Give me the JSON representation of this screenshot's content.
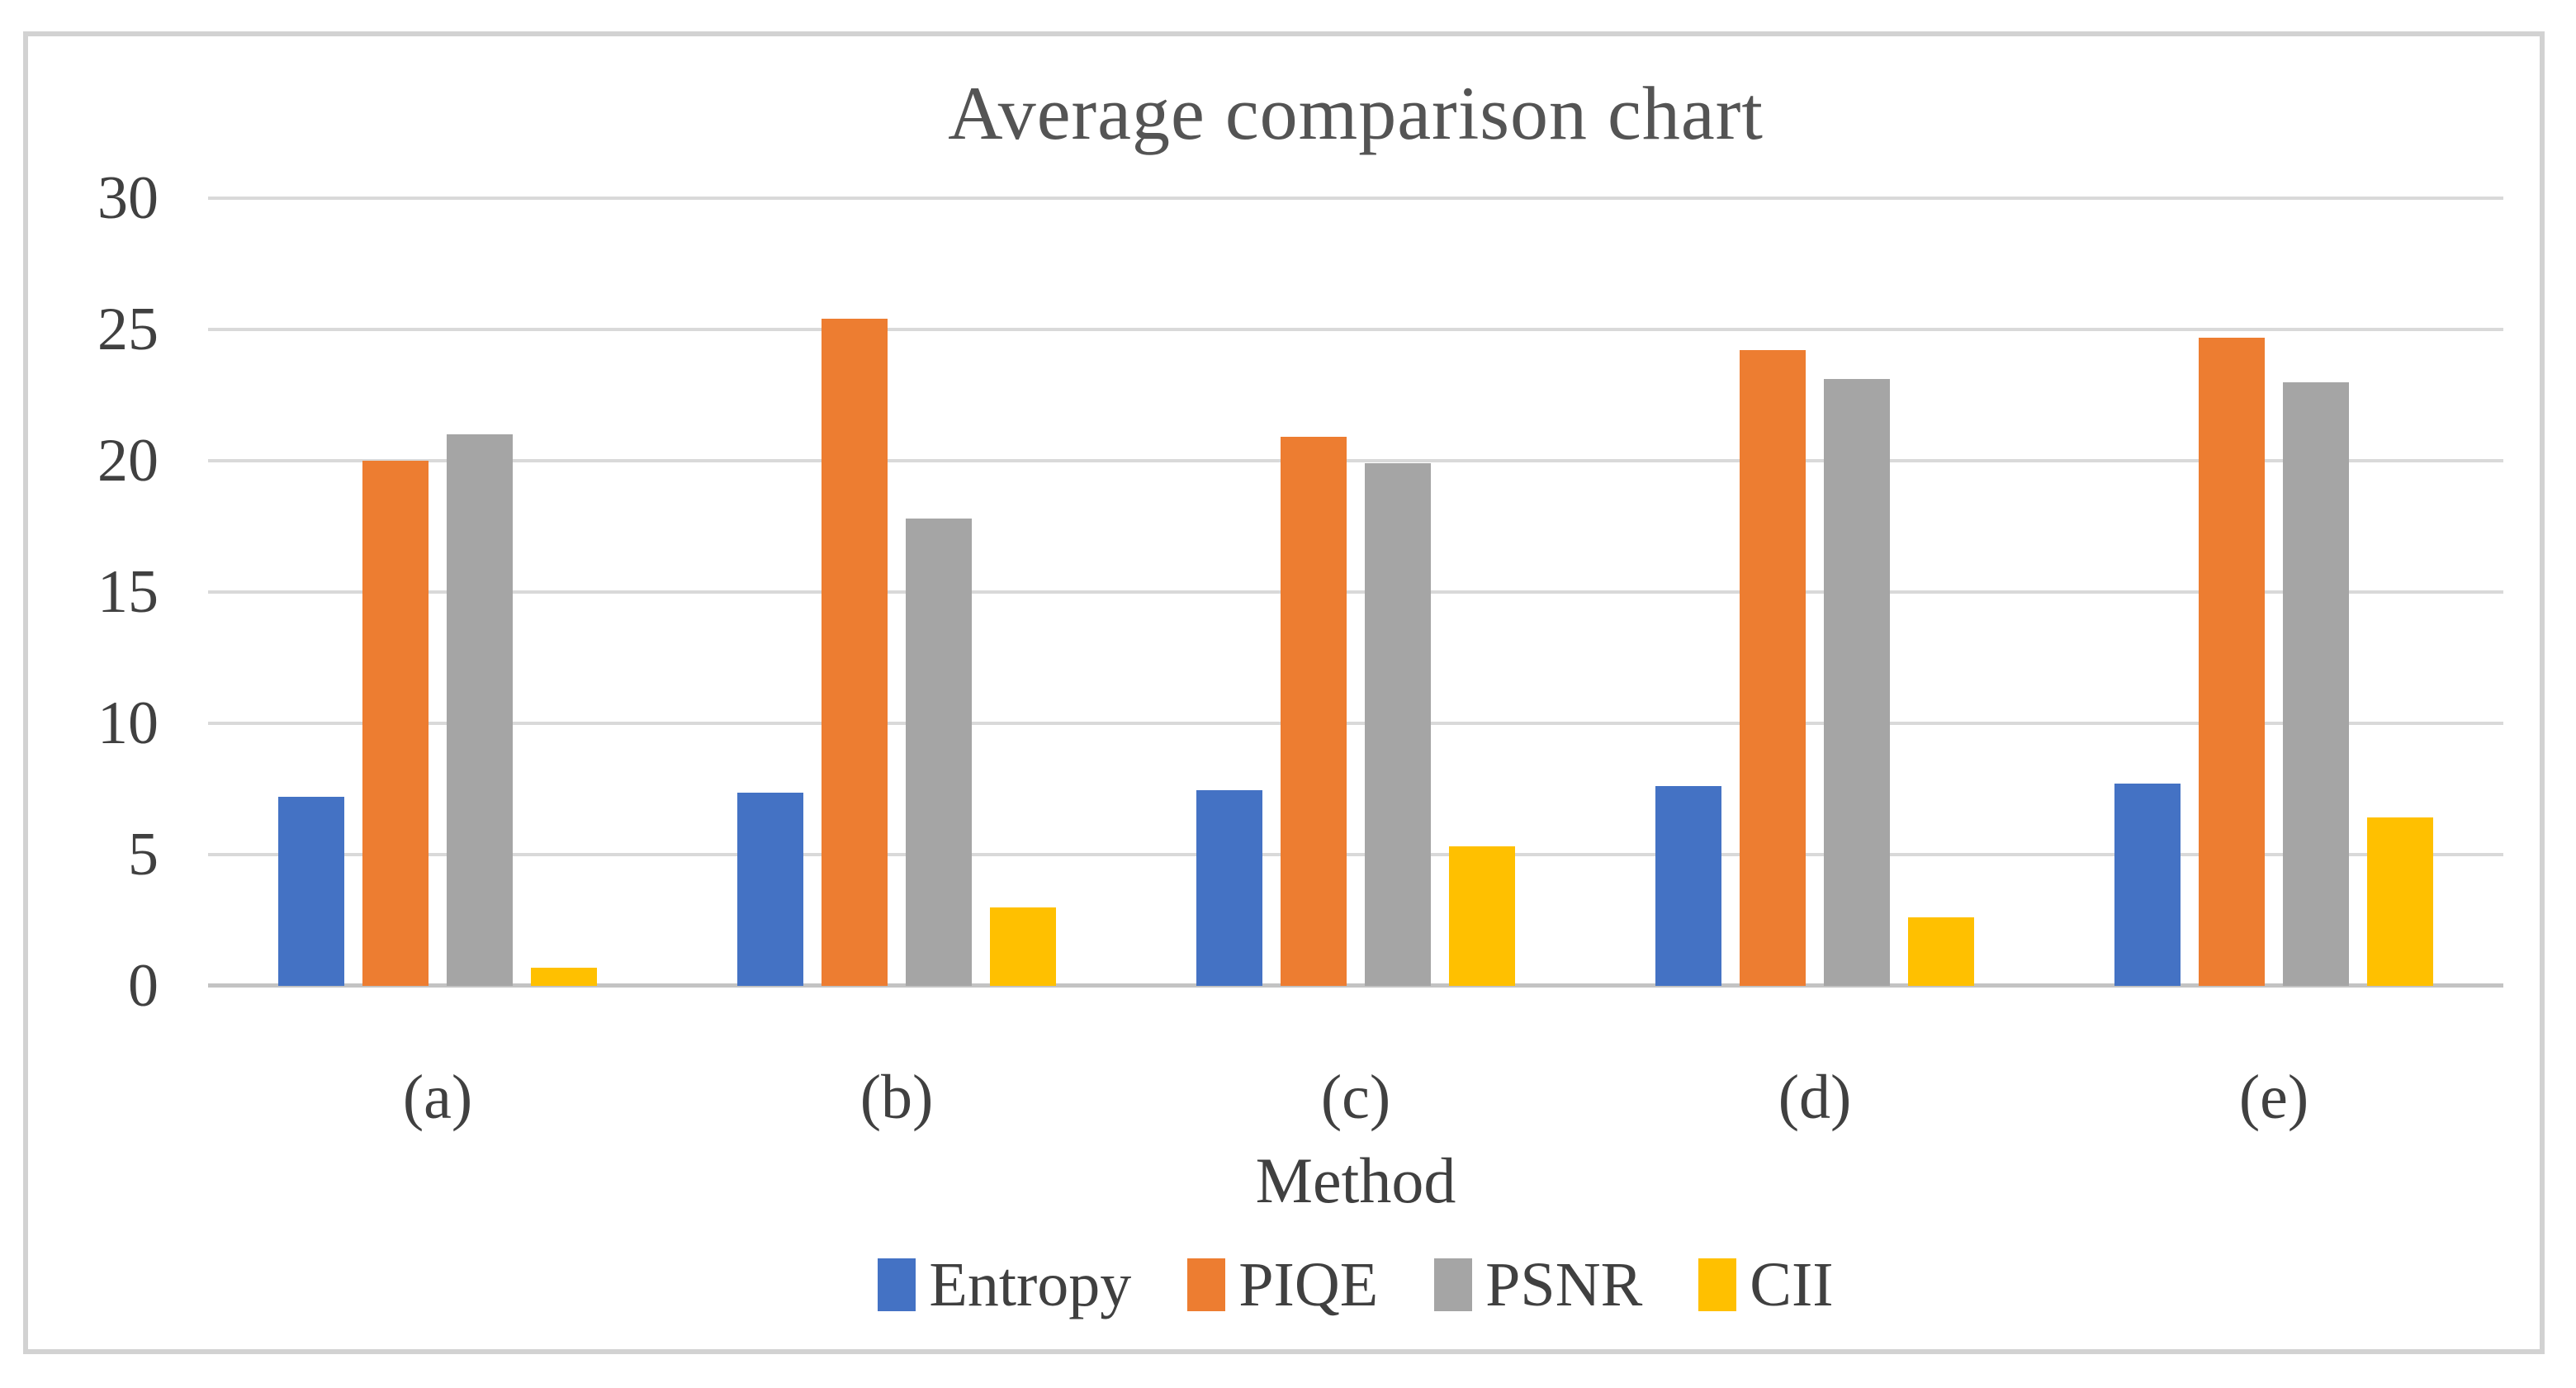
{
  "chart_data": {
    "type": "bar",
    "title": "Average comparison chart",
    "xlabel": "Method",
    "ylabel": "",
    "categories": [
      "(a)",
      "(b)",
      "(c)",
      "(d)",
      "(e)"
    ],
    "series": [
      {
        "name": "Entropy",
        "color": "#4472C4",
        "values": [
          7.2,
          7.35,
          7.45,
          7.6,
          7.7
        ]
      },
      {
        "name": "PIQE",
        "color": "#ED7D31",
        "values": [
          20.0,
          25.4,
          20.9,
          24.2,
          24.7
        ]
      },
      {
        "name": "PSNR",
        "color": "#A5A5A5",
        "values": [
          21.0,
          17.8,
          19.9,
          23.1,
          23.0
        ]
      },
      {
        "name": "CII",
        "color": "#FFC000",
        "values": [
          0.7,
          3.0,
          5.3,
          2.6,
          6.4
        ]
      }
    ],
    "ylim": [
      0,
      30
    ],
    "yticks": [
      0,
      5,
      10,
      15,
      20,
      25,
      30
    ],
    "grid": true,
    "legend_position": "bottom"
  },
  "style": {
    "frame_border_color": "#d2d2d2",
    "gridline_color": "#d9d9d9",
    "axis_line_color": "#c3c3c3",
    "title_color": "#545454",
    "text_color": "#404040",
    "background": "#ffffff"
  }
}
